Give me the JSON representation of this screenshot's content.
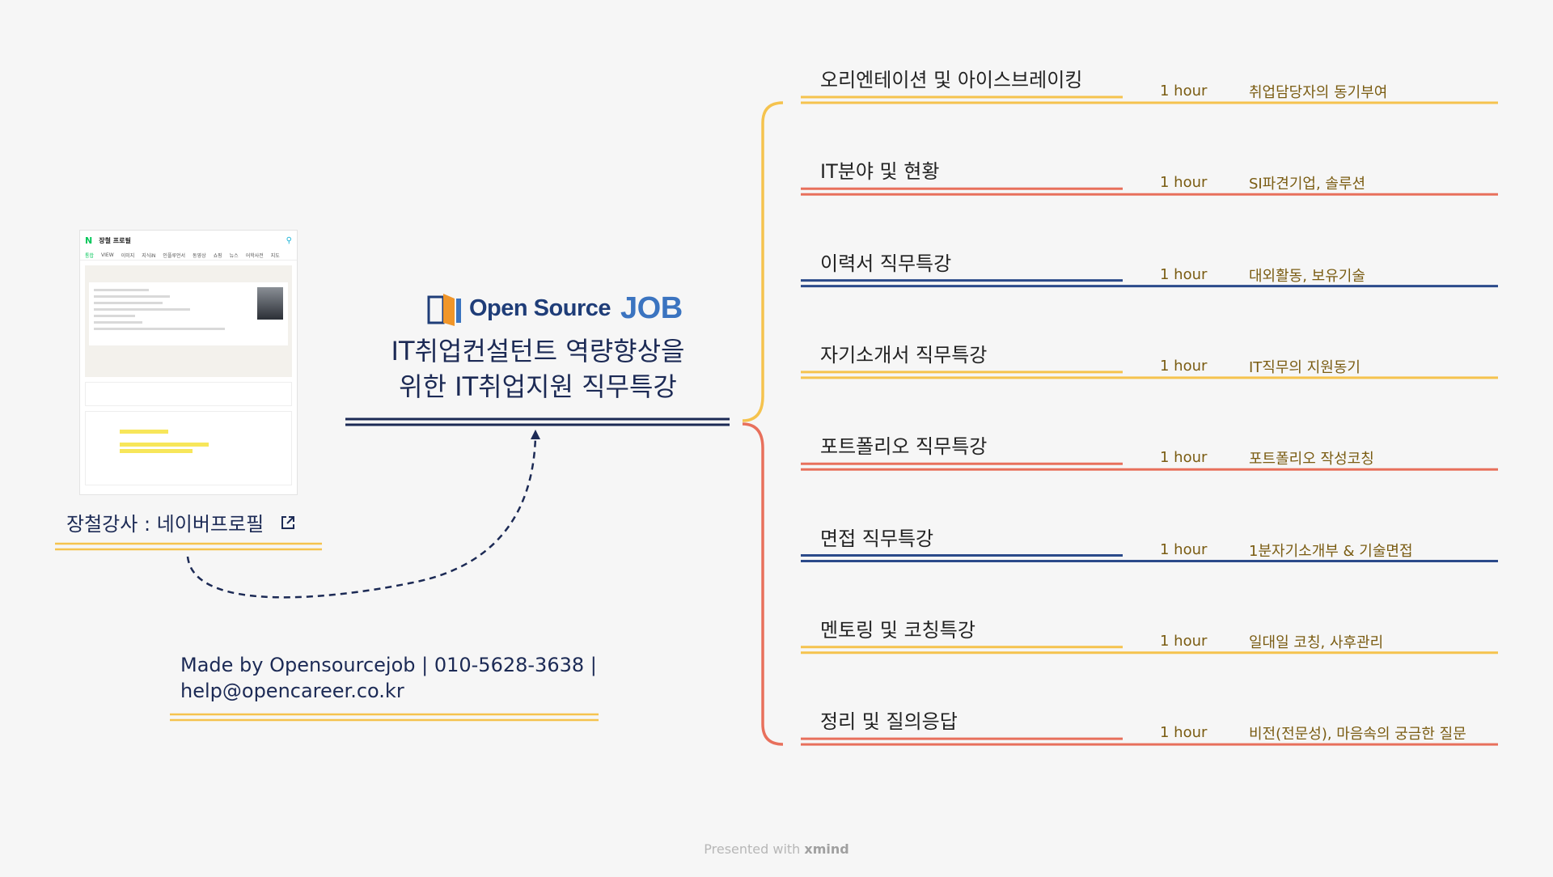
{
  "center": {
    "logo_text": "Open Source",
    "logo_job": "JOB",
    "title_line1": "IT취업컨설턴트 역량향상을",
    "title_line2": "위한 IT취업지원 직무특강"
  },
  "profile": {
    "instructor_label": "장철강사 : 네이버프로필",
    "card": {
      "title": "장철 프로필",
      "tabs": [
        "통합",
        "VIEW",
        "이미지",
        "지식iN",
        "인플루언서",
        "동영상",
        "쇼핑",
        "뉴스",
        "어학사전",
        "지도"
      ]
    }
  },
  "footer": {
    "line1": "Made by Opensourcejob | 010-5628-3638 |",
    "line2": "help@opencareer.co.kr"
  },
  "branches": [
    {
      "title": "오리엔테이션 및 아이스브레이킹",
      "duration": "1 hour",
      "note": "취업담당자의 동기부여",
      "color": "#f5c34e"
    },
    {
      "title": "IT분야 및 현황",
      "duration": "1 hour",
      "note": "SI파견기업, 솔루션",
      "color": "#e8705c"
    },
    {
      "title": "이력서 직무특강",
      "duration": "1 hour",
      "note": "대외활동, 보유기술",
      "color": "#2b4a8a"
    },
    {
      "title": "자기소개서 직무특강",
      "duration": "1 hour",
      "note": "IT직무의 지원동기",
      "color": "#f5c34e"
    },
    {
      "title": "포트폴리오 직무특강",
      "duration": "1 hour",
      "note": "포트폴리오 작성코칭",
      "color": "#e8705c"
    },
    {
      "title": "면접 직무특강",
      "duration": "1 hour",
      "note": "1분자기소개부 & 기술면접",
      "color": "#2b4a8a"
    },
    {
      "title": "멘토링 및 코칭특강",
      "duration": "1 hour",
      "note": "일대일 코칭, 사후관리",
      "color": "#f5c34e"
    },
    {
      "title": "정리 및 질의응답",
      "duration": "1 hour",
      "note": "비전(전문성), 마음속의 궁금한 질문",
      "color": "#e8705c"
    }
  ],
  "colors": {
    "yellow": "#f5c34e",
    "coral": "#e8705c",
    "navy": "#2b4a8a",
    "dark_navy": "#1c2a55"
  },
  "watermark": {
    "prefix": "Presented with",
    "brand": "xmind"
  }
}
